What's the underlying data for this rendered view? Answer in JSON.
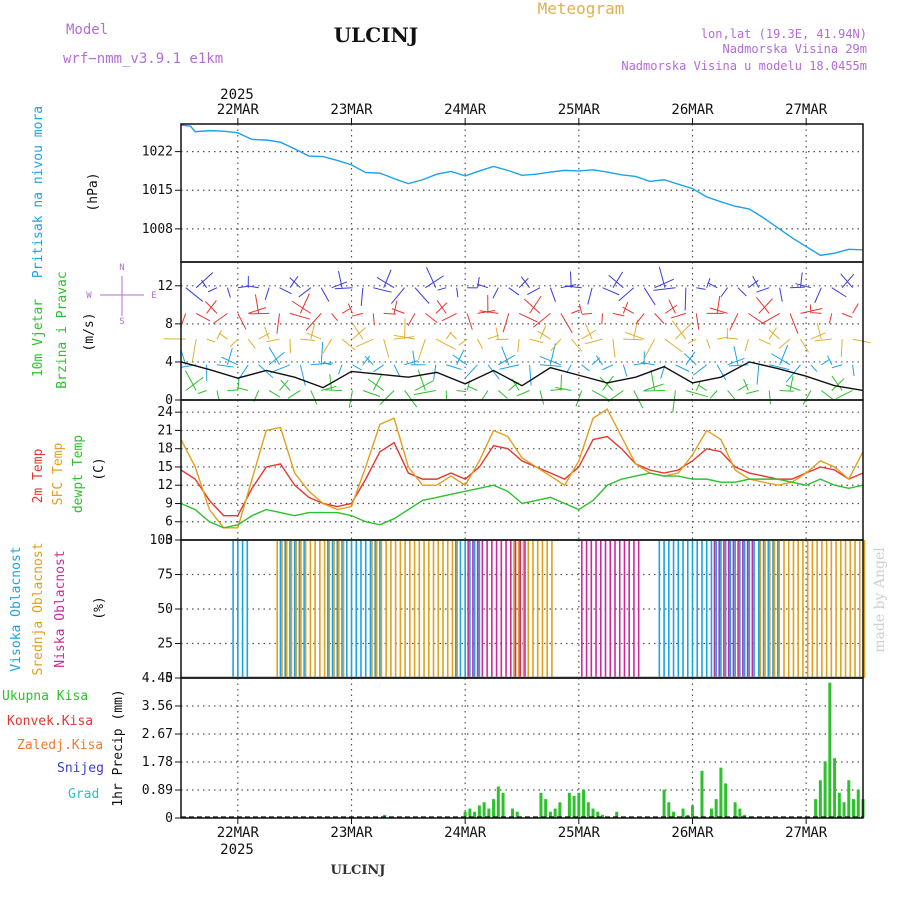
{
  "header": {
    "model_label": "Model",
    "model_name": "wrf−nmm_v3.9.1 e1km",
    "station": "ULCINJ",
    "product": "Meteogram",
    "location": "lon,lat (19.3E, 41.94N)",
    "altitude": "Nadmorska Visina 29m",
    "model_altitude": "Nadmorska Visina u modelu 18.0455m",
    "footer_station": "ULCINJ",
    "credit": "made by Angel"
  },
  "colors": {
    "pressure": "#1aa3e8",
    "temp2m": "#e8352e",
    "sfc": "#e0a020",
    "dewpt": "#2ec02e",
    "cloud_high": "#1aa3e8",
    "cloud_mid": "#e0a020",
    "cloud_low": "#cc2a9a",
    "precip_total": "#2ec02e",
    "wind_speed": "#111111",
    "grid": "#555555"
  },
  "time_axis": {
    "year": "2025",
    "days": [
      "22MAR",
      "23MAR",
      "24MAR",
      "25MAR",
      "26MAR",
      "27MAR"
    ],
    "day_hours": [
      12,
      36,
      60,
      84,
      108,
      132
    ],
    "range_hours": [
      0,
      144
    ]
  },
  "chart_data": [
    {
      "type": "line",
      "panel": "pressure",
      "labels": [
        "Pritisak na nivou mora",
        "(hPa)"
      ],
      "yticks": [
        "1022",
        "1015",
        "1008"
      ],
      "ylim": [
        1002,
        1027
      ],
      "x": [
        0,
        2,
        3,
        6,
        9,
        12,
        15,
        18,
        21,
        24,
        27,
        30,
        33,
        36,
        39,
        42,
        45,
        48,
        51,
        54,
        57,
        60,
        63,
        66,
        69,
        72,
        75,
        78,
        81,
        84,
        87,
        90,
        93,
        96,
        99,
        102,
        105,
        108,
        111,
        114,
        117,
        120,
        123,
        126,
        129,
        132,
        135,
        138,
        141,
        144
      ],
      "values": [
        1026.8,
        1026.6,
        1025.6,
        1025.8,
        1025.7,
        1025.4,
        1024.2,
        1024.1,
        1023.7,
        1022.5,
        1021.2,
        1021.1,
        1020.4,
        1019.6,
        1018.2,
        1018.1,
        1017.1,
        1016.2,
        1016.9,
        1017.9,
        1018.4,
        1017.6,
        1018.5,
        1019.3,
        1018.6,
        1017.7,
        1017.9,
        1018.3,
        1018.6,
        1018.5,
        1018.7,
        1018.3,
        1017.8,
        1017.5,
        1016.6,
        1016.9,
        1016.1,
        1015.3,
        1013.8,
        1012.9,
        1012.1,
        1011.6,
        1010.0,
        1008.2,
        1006.4,
        1004.8,
        1003.2,
        1003.6,
        1004.3,
        1004.2
      ]
    },
    {
      "type": "line",
      "panel": "wind",
      "labels": [
        "10m Vjetar",
        "Brzina i Pravac",
        "(m/s)"
      ],
      "compass": [
        "N",
        "E",
        "S",
        "W"
      ],
      "yticks": [
        "0",
        "4",
        "8",
        "12"
      ],
      "ylim": [
        0,
        14.5
      ],
      "x": [
        0,
        6,
        12,
        18,
        24,
        30,
        36,
        42,
        48,
        54,
        60,
        66,
        72,
        78,
        84,
        90,
        96,
        102,
        108,
        114,
        120,
        126,
        132,
        138,
        144
      ],
      "values": [
        4.0,
        3.2,
        2.3,
        3.1,
        2.4,
        1.3,
        3.0,
        2.7,
        2.4,
        2.9,
        1.7,
        3.1,
        1.5,
        3.4,
        2.6,
        1.8,
        2.4,
        3.5,
        1.8,
        2.4,
        4.0,
        3.3,
        2.5,
        1.5,
        1.0
      ]
    },
    {
      "type": "line",
      "panel": "temperature",
      "labels": [
        "2m Temp",
        "SFC Temp",
        "dewpt Temp",
        "(C)"
      ],
      "yticks": [
        "3",
        "6",
        "9",
        "12",
        "15",
        "18",
        "21",
        "24"
      ],
      "ylim": [
        3,
        26
      ],
      "x": [
        0,
        3,
        6,
        9,
        12,
        15,
        18,
        21,
        24,
        27,
        30,
        33,
        36,
        39,
        42,
        45,
        48,
        51,
        54,
        57,
        60,
        63,
        66,
        69,
        72,
        75,
        78,
        81,
        84,
        87,
        90,
        93,
        96,
        99,
        102,
        105,
        108,
        111,
        114,
        117,
        120,
        123,
        126,
        129,
        132,
        135,
        138,
        141,
        144
      ],
      "series": [
        {
          "name": "2m Temp",
          "color_key": "temp2m",
          "values": [
            14.5,
            13.0,
            9.5,
            7.0,
            7.0,
            11.5,
            15.0,
            15.5,
            12.0,
            10.0,
            9.0,
            8.5,
            9.0,
            13.0,
            17.5,
            19.0,
            14.0,
            13.0,
            13.0,
            14.0,
            13.0,
            15.0,
            18.5,
            18.0,
            16.0,
            15.0,
            14.0,
            13.0,
            15.0,
            19.5,
            20.0,
            18.0,
            15.5,
            14.5,
            14.0,
            14.5,
            16.0,
            18.0,
            17.5,
            15.0,
            14.0,
            13.5,
            13.0,
            13.0,
            14.0,
            15.0,
            14.5,
            13.0,
            14.0
          ]
        },
        {
          "name": "SFC Temp",
          "color_key": "sfc",
          "values": [
            19.5,
            15.0,
            8.0,
            5.0,
            5.0,
            13.0,
            21.0,
            21.5,
            14.0,
            11.0,
            9.0,
            8.0,
            8.5,
            15.0,
            22.0,
            23.0,
            15.0,
            12.0,
            12.0,
            13.5,
            12.0,
            16.0,
            21.0,
            20.0,
            16.5,
            15.0,
            13.5,
            12.0,
            16.0,
            23.0,
            24.5,
            20.0,
            15.5,
            14.0,
            13.5,
            14.0,
            17.0,
            21.0,
            19.5,
            14.5,
            13.0,
            12.5,
            12.0,
            12.5,
            14.0,
            16.0,
            15.0,
            13.0,
            17.5
          ]
        },
        {
          "name": "dewpt Temp",
          "color_key": "dewpt",
          "values": [
            9.0,
            8.0,
            6.0,
            5.0,
            5.5,
            7.0,
            8.0,
            7.5,
            7.0,
            7.5,
            7.5,
            7.5,
            7.0,
            6.0,
            5.5,
            6.5,
            8.0,
            9.5,
            10.0,
            10.5,
            11.0,
            11.5,
            12.0,
            11.0,
            9.0,
            9.5,
            10.0,
            9.0,
            8.0,
            9.5,
            12.0,
            13.0,
            13.5,
            14.0,
            13.5,
            13.5,
            13.0,
            13.0,
            12.5,
            12.5,
            13.0,
            13.0,
            13.0,
            12.5,
            12.0,
            13.0,
            12.0,
            11.5,
            12.0
          ]
        }
      ]
    },
    {
      "type": "bar",
      "panel": "clouds",
      "labels": [
        "Visoka Oblacnost",
        "Srednja Oblacnost",
        "Niska Oblacnost",
        "(%)"
      ],
      "yticks": [
        "0",
        "25",
        "50",
        "75",
        "100"
      ],
      "ylim": [
        0,
        100
      ],
      "series": [
        {
          "name": "Visoka Oblacnost",
          "color_key": "cloud_high",
          "ranges": [
            [
              11,
              14
            ],
            [
              21,
              26
            ],
            [
              31,
              42
            ],
            [
              58,
              63
            ],
            [
              101,
              126
            ]
          ],
          "value": 100
        },
        {
          "name": "Srednja Oblacnost",
          "color_key": "cloud_mid",
          "ranges": [
            [
              20,
              34
            ],
            [
              40,
              58
            ],
            [
              70,
              78
            ],
            [
              122,
              144
            ]
          ],
          "value": 100
        },
        {
          "name": "Niska Oblacnost",
          "color_key": "cloud_low",
          "ranges": [
            [
              60,
              72
            ],
            [
              84,
              96
            ],
            [
              112,
              120
            ]
          ],
          "value": 100
        }
      ]
    },
    {
      "type": "bar",
      "panel": "precipitation",
      "labels": [
        "Ukupna Kisa",
        "Konvek.Kisa",
        "Zaledj.Kisa",
        "Snijeg",
        "Grad",
        "1hr Precip (mm)"
      ],
      "yticks": [
        "0",
        "0.89",
        "1.78",
        "2.67",
        "3.56",
        "4.45"
      ],
      "ylim": [
        0,
        4.45
      ],
      "x": [
        43,
        60,
        61,
        62,
        63,
        64,
        65,
        66,
        67,
        68,
        70,
        71,
        76,
        77,
        78,
        79,
        80,
        82,
        83,
        84,
        85,
        86,
        87,
        88,
        89,
        92,
        102,
        103,
        104,
        106,
        107,
        108,
        110,
        112,
        113,
        114,
        115,
        117,
        118,
        119,
        134,
        135,
        136,
        137,
        138,
        139,
        140,
        141,
        142,
        143,
        144
      ],
      "values": [
        0.1,
        0.2,
        0.3,
        0.2,
        0.4,
        0.5,
        0.3,
        0.6,
        1.0,
        0.8,
        0.3,
        0.2,
        0.8,
        0.6,
        0.2,
        0.3,
        0.5,
        0.8,
        0.7,
        0.8,
        0.9,
        0.5,
        0.3,
        0.2,
        0.1,
        0.2,
        0.9,
        0.5,
        0.2,
        0.3,
        0.1,
        0.4,
        1.5,
        0.3,
        0.6,
        1.6,
        1.1,
        0.5,
        0.3,
        0.1,
        0.6,
        1.2,
        1.8,
        4.3,
        1.9,
        0.8,
        0.5,
        1.2,
        0.6,
        0.9,
        0.6
      ]
    }
  ]
}
